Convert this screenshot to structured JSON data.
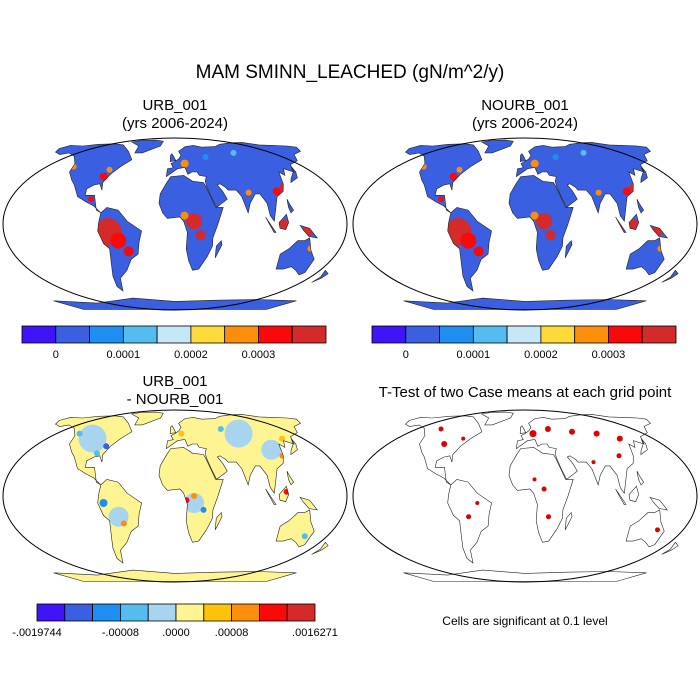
{
  "title": "MAM SMINN_LEACHED (gN/m^2/y)",
  "panels": {
    "urb": {
      "title_line1": "URB_001",
      "title_line2": "(yrs 2006-2024)"
    },
    "nourb": {
      "title_line1": "NOURB_001",
      "title_line2": "(yrs 2006-2024)"
    },
    "diff": {
      "title_line1": "URB_001",
      "title_line2": "- NOURB_001"
    },
    "ttest": {
      "title": "T-Test of two Case means at each grid point",
      "note": "Cells are significant at 0.1 level"
    }
  },
  "chart_data": [
    {
      "type": "heatmap",
      "title": "URB_001 (yrs 2006-2024)",
      "projection": "Robinson",
      "colorbar": {
        "colors": [
          "#3f14f7",
          "#3a5fe0",
          "#1e8ff0",
          "#55bcef",
          "#c6e7f5",
          "#fdd93a",
          "#fc8e0c",
          "#f80a0a",
          "#d42a2a"
        ],
        "tick_labels": [
          "0",
          "0.0001",
          "0.0002",
          "0.0003"
        ],
        "tick_values": [
          0,
          0.0001,
          0.0002,
          0.0003
        ]
      }
    },
    {
      "type": "heatmap",
      "title": "NOURB_001 (yrs 2006-2024)",
      "projection": "Robinson",
      "colorbar": {
        "colors": [
          "#3f14f7",
          "#3a5fe0",
          "#1e8ff0",
          "#55bcef",
          "#c6e7f5",
          "#fdd93a",
          "#fc8e0c",
          "#f80a0a",
          "#d42a2a"
        ],
        "tick_labels": [
          "0",
          "0.0001",
          "0.0002",
          "0.0003"
        ],
        "tick_values": [
          0,
          0.0001,
          0.0002,
          0.0003
        ]
      }
    },
    {
      "type": "heatmap",
      "title": "URB_001 - NOURB_001",
      "projection": "Robinson",
      "colorbar": {
        "colors": [
          "#3f14f7",
          "#3a5fe0",
          "#1e8ff0",
          "#55bcef",
          "#a7d5ef",
          "#fef592",
          "#fdc30a",
          "#fc8e0c",
          "#f80a0a",
          "#d42a2a"
        ],
        "tick_labels": [
          "-.0019744",
          "-.00008",
          ".0000",
          ".00008",
          ".0016271"
        ],
        "min": -0.0019744,
        "max": 0.0016271
      }
    },
    {
      "type": "heatmap",
      "title": "T-Test of two Case means at each grid point",
      "projection": "Robinson",
      "legend": "Cells are significant at 0.1 level",
      "significance_level": 0.1,
      "significant_color": "#e00000"
    }
  ]
}
